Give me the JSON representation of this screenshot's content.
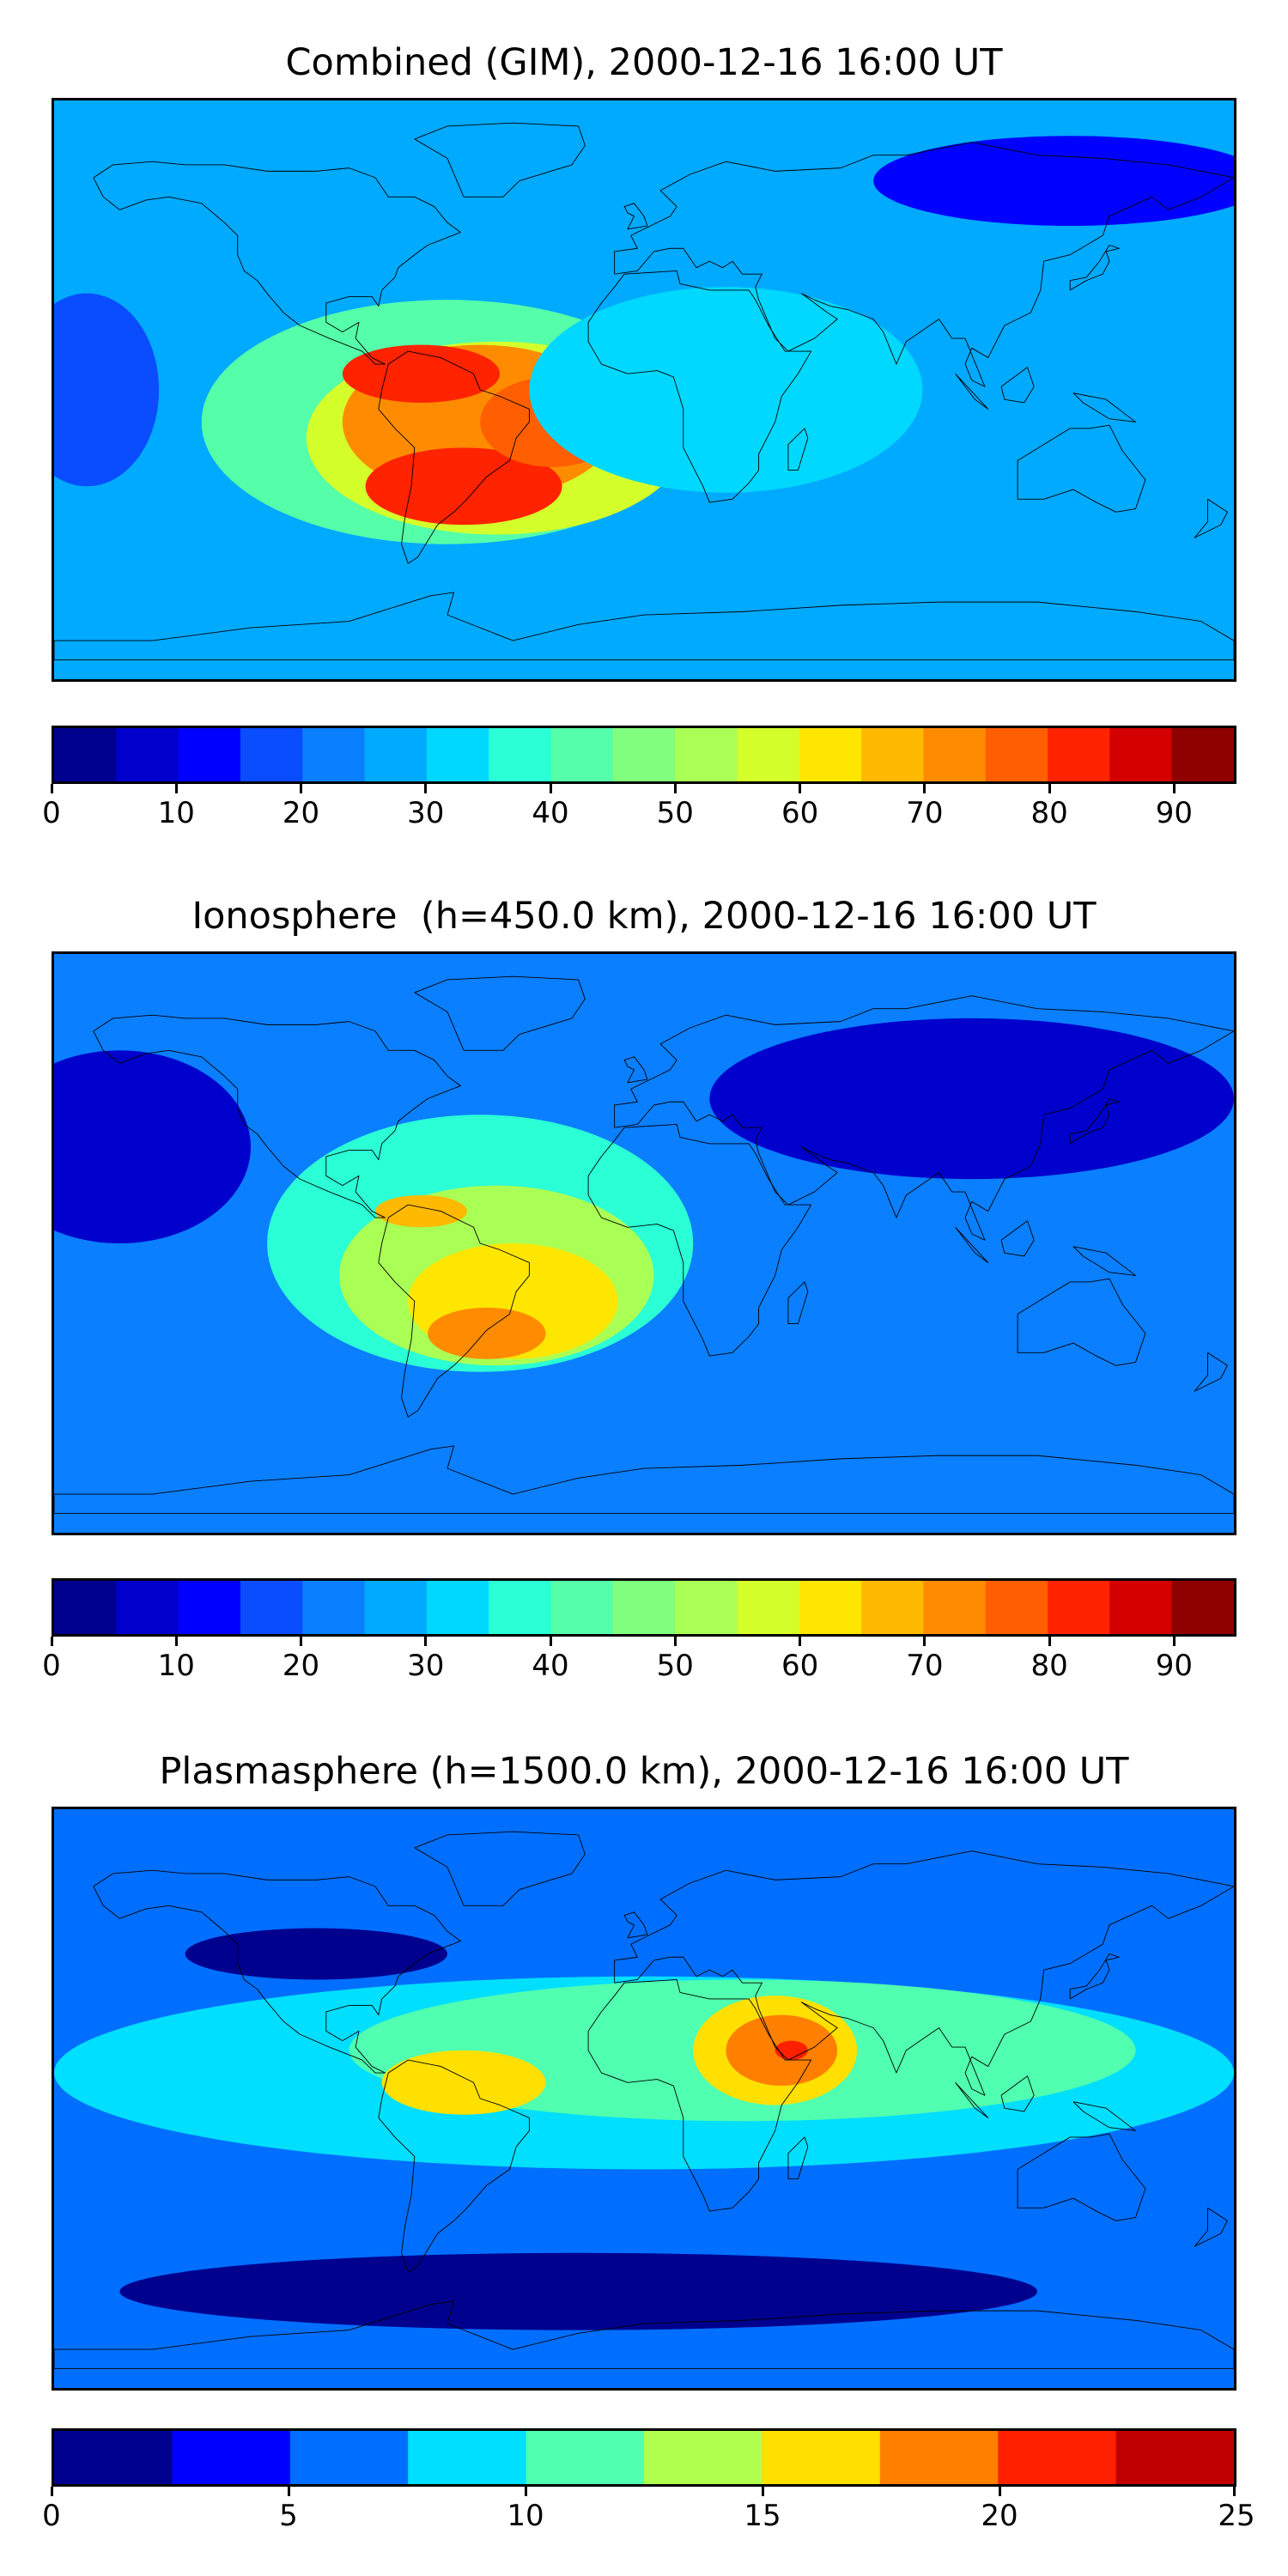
{
  "panels": [
    {
      "title": "Combined (GIM), 2000-12-16 16:00 UT",
      "colorbar": {
        "min": 0,
        "max": 95,
        "step": 5,
        "ticks": [
          "0",
          "10",
          "20",
          "30",
          "40",
          "50",
          "60",
          "70",
          "80",
          "90"
        ],
        "tick_values": [
          0,
          10,
          20,
          30,
          40,
          50,
          60,
          70,
          80,
          90
        ]
      },
      "background_level": 25,
      "features": [
        {
          "lon": -60,
          "lat": -10,
          "rx": 75,
          "ry": 38,
          "level": 40
        },
        {
          "lon": -45,
          "lat": -15,
          "rx": 58,
          "ry": 30,
          "level": 55
        },
        {
          "lon": -50,
          "lat": -10,
          "rx": 42,
          "ry": 24,
          "level": 70
        },
        {
          "lon": -68,
          "lat": 5,
          "rx": 24,
          "ry": 9,
          "level": 80
        },
        {
          "lon": -55,
          "lat": -30,
          "rx": 30,
          "ry": 12,
          "level": 80
        },
        {
          "lon": -28,
          "lat": -10,
          "rx": 22,
          "ry": 14,
          "level": 75
        },
        {
          "lon": 25,
          "lat": 0,
          "rx": 60,
          "ry": 32,
          "level": 30
        },
        {
          "lon": 130,
          "lat": 65,
          "rx": 60,
          "ry": 14,
          "level": 12
        },
        {
          "lon": -170,
          "lat": 0,
          "rx": 22,
          "ry": 30,
          "level": 15
        }
      ]
    },
    {
      "title": "Ionosphere  (h=450.0 km), 2000-12-16 16:00 UT",
      "colorbar": {
        "min": 0,
        "max": 95,
        "step": 5,
        "ticks": [
          "0",
          "10",
          "20",
          "30",
          "40",
          "50",
          "60",
          "70",
          "80",
          "90"
        ],
        "tick_values": [
          0,
          10,
          20,
          30,
          40,
          50,
          60,
          70,
          80,
          90
        ]
      },
      "background_level": 20,
      "features": [
        {
          "lon": -50,
          "lat": 0,
          "rx": 65,
          "ry": 40,
          "level": 35
        },
        {
          "lon": -45,
          "lat": -10,
          "rx": 48,
          "ry": 28,
          "level": 50
        },
        {
          "lon": -40,
          "lat": -18,
          "rx": 32,
          "ry": 18,
          "level": 60
        },
        {
          "lon": -48,
          "lat": -28,
          "rx": 18,
          "ry": 8,
          "level": 70
        },
        {
          "lon": -68,
          "lat": 10,
          "rx": 14,
          "ry": 5,
          "level": 65
        },
        {
          "lon": 100,
          "lat": 45,
          "rx": 80,
          "ry": 25,
          "level": 5
        },
        {
          "lon": -160,
          "lat": 30,
          "rx": 40,
          "ry": 30,
          "level": 8
        }
      ]
    },
    {
      "title": "Plasmasphere (h=1500.0 km), 2000-12-16 16:00 UT",
      "colorbar": {
        "min": 0,
        "max": 25,
        "step": 2.5,
        "ticks": [
          "0",
          "5",
          "10",
          "15",
          "20",
          "25"
        ],
        "tick_values": [
          0,
          5,
          10,
          15,
          20,
          25
        ]
      },
      "background_level": 5,
      "features": [
        {
          "lon": 0,
          "lat": 8,
          "rx": 180,
          "ry": 30,
          "level": 7.5
        },
        {
          "lon": 30,
          "lat": 15,
          "rx": 120,
          "ry": 22,
          "level": 10
        },
        {
          "lon": 40,
          "lat": 15,
          "rx": 25,
          "ry": 17,
          "level": 15
        },
        {
          "lon": 42,
          "lat": 15,
          "rx": 17,
          "ry": 11,
          "level": 17.5
        },
        {
          "lon": 45,
          "lat": 15,
          "rx": 5,
          "ry": 3,
          "level": 20
        },
        {
          "lon": -55,
          "lat": 5,
          "rx": 25,
          "ry": 10,
          "level": 15
        },
        {
          "lon": -100,
          "lat": 45,
          "rx": 40,
          "ry": 8,
          "level": 0
        },
        {
          "lon": -20,
          "lat": -60,
          "rx": 140,
          "ry": 12,
          "level": 0
        }
      ]
    }
  ],
  "colors_95": [
    "#00008f",
    "#0000cc",
    "#0000ff",
    "#0a4cff",
    "#0a7fff",
    "#00aaff",
    "#00d8ff",
    "#2affd5",
    "#55ffa9",
    "#80ff7f",
    "#aaff55",
    "#d4ff2a",
    "#ffe600",
    "#ffb900",
    "#ff8c00",
    "#ff5f00",
    "#ff2300",
    "#d40000",
    "#8f0000"
  ],
  "colors_25": [
    "#00008f",
    "#0000ff",
    "#006fff",
    "#00dfff",
    "#50ffaf",
    "#b0ff4f",
    "#ffe000",
    "#ff8000",
    "#ff2000",
    "#c00000"
  ],
  "coast_color": "#000000"
}
